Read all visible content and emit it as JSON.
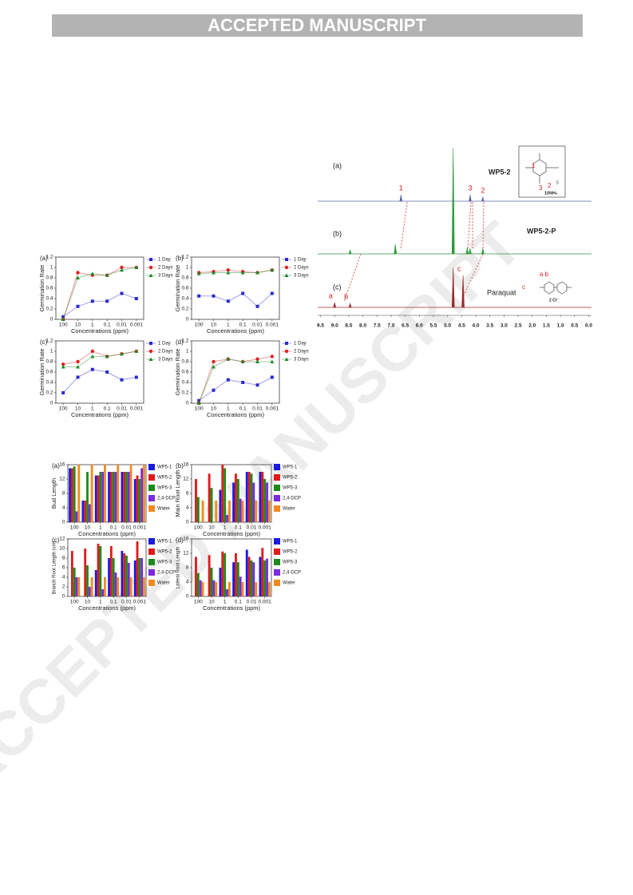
{
  "header": {
    "banner": "ACCEPTED MANUSCRIPT"
  },
  "watermark": "ACCEPTED MANUSCRIPT",
  "structures": {
    "wp52_labels": [
      "1",
      "2",
      "3",
      "5",
      "10NH₄"
    ],
    "paraquat_labels": [
      "a b",
      "c",
      "2 Cl⁻"
    ]
  },
  "chart_data": [
    {
      "type": "line",
      "panel_label": "(a)",
      "ylabel": "Germination Rate",
      "xlabel": "Concentrations (ppm)",
      "categories": [
        "100",
        "10",
        "1",
        "0.1",
        "0.01",
        "0.001"
      ],
      "ylim": [
        0,
        1.2
      ],
      "yticks": [
        0,
        0.2,
        0.4,
        0.6,
        0.8,
        1,
        1.2
      ],
      "legend": "right",
      "series": [
        {
          "name": "1 Day",
          "color": "#2a2ad0",
          "marker": "square",
          "values": [
            0.05,
            0.25,
            0.35,
            0.35,
            0.5,
            0.4
          ]
        },
        {
          "name": "2 Days",
          "color": "#e02020",
          "marker": "circle",
          "values": [
            0,
            0.9,
            0.85,
            0.85,
            1.0,
            1.0
          ]
        },
        {
          "name": "3 Days",
          "color": "#1f8a2a",
          "marker": "triangle",
          "values": [
            0,
            0.8,
            0.88,
            0.85,
            0.95,
            1.0
          ]
        }
      ]
    },
    {
      "type": "line",
      "panel_label": "(b)",
      "ylabel": "Germination Rate",
      "xlabel": "Concentrations (ppm)",
      "categories": [
        "100",
        "10",
        "1",
        "0.1",
        "0.01",
        "0.001"
      ],
      "ylim": [
        0,
        1.2
      ],
      "yticks": [
        0,
        0.2,
        0.4,
        0.6,
        0.8,
        1,
        1.2
      ],
      "legend": "right",
      "series": [
        {
          "name": "1 Day",
          "color": "#2a2ad0",
          "marker": "square",
          "values": [
            0.45,
            0.45,
            0.35,
            0.5,
            0.25,
            0.5
          ]
        },
        {
          "name": "2 Days",
          "color": "#e02020",
          "marker": "circle",
          "values": [
            0.9,
            0.92,
            0.95,
            0.92,
            0.9,
            0.95
          ]
        },
        {
          "name": "3 Days",
          "color": "#1f8a2a",
          "marker": "triangle",
          "values": [
            0.88,
            0.9,
            0.9,
            0.9,
            0.9,
            0.95
          ]
        }
      ]
    },
    {
      "type": "line",
      "panel_label": "(c)",
      "ylabel": "Germination Rate",
      "xlabel": "Concentrations (ppm)",
      "categories": [
        "100",
        "10",
        "1",
        "0.1",
        "0.01",
        "0.001"
      ],
      "ylim": [
        0,
        1.2
      ],
      "yticks": [
        0,
        0.2,
        0.4,
        0.6,
        0.8,
        1,
        1.2
      ],
      "legend": "right",
      "series": [
        {
          "name": "1 Day",
          "color": "#2a2ad0",
          "marker": "square",
          "values": [
            0.2,
            0.5,
            0.65,
            0.6,
            0.45,
            0.5
          ]
        },
        {
          "name": "2 Days",
          "color": "#e02020",
          "marker": "circle",
          "values": [
            0.75,
            0.8,
            1.0,
            0.9,
            0.95,
            1.0
          ]
        },
        {
          "name": "3 Days",
          "color": "#1f8a2a",
          "marker": "triangle",
          "values": [
            0.7,
            0.7,
            0.9,
            0.9,
            0.95,
            1.0
          ]
        }
      ]
    },
    {
      "type": "line",
      "panel_label": "(d)",
      "ylabel": "Germination Rate",
      "xlabel": "Concentrations (ppm)",
      "categories": [
        "100",
        "10",
        "1",
        "0.1",
        "0.01",
        "0.001"
      ],
      "ylim": [
        0,
        1.2
      ],
      "yticks": [
        0,
        0.2,
        0.4,
        0.6,
        0.8,
        1,
        1.2
      ],
      "legend": "right",
      "series": [
        {
          "name": "1 Day",
          "color": "#2a2ad0",
          "marker": "square",
          "values": [
            0.05,
            0.25,
            0.45,
            0.4,
            0.35,
            0.5
          ]
        },
        {
          "name": "2 Days",
          "color": "#e02020",
          "marker": "circle",
          "values": [
            0,
            0.8,
            0.85,
            0.8,
            0.85,
            0.9
          ]
        },
        {
          "name": "3 Days",
          "color": "#1f8a2a",
          "marker": "triangle",
          "values": [
            0,
            0.7,
            0.85,
            0.8,
            0.8,
            0.8
          ]
        }
      ]
    },
    {
      "type": "bar",
      "panel_label": "(a)",
      "ylabel": "Bud Length",
      "xlabel": "Concentrations (ppm)",
      "categories": [
        "100",
        "10",
        "1",
        "0.1",
        "0.01",
        "0.001"
      ],
      "ylim": [
        0,
        16
      ],
      "yticks": [
        0,
        4,
        8,
        12,
        16
      ],
      "legend": "right",
      "series": [
        {
          "name": "WP5-1",
          "color": "#1a1ae0",
          "values": [
            15,
            6,
            13,
            14,
            14,
            12
          ]
        },
        {
          "name": "WP5-2",
          "color": "#e01a1a",
          "values": [
            15,
            6,
            13,
            14,
            14,
            13
          ]
        },
        {
          "name": "WP5-3",
          "color": "#1a8a1a",
          "values": [
            15.5,
            14,
            14,
            14,
            14,
            12
          ]
        },
        {
          "name": "2,4-DCP",
          "color": "#7a2ae0",
          "values": [
            3,
            5,
            14,
            14,
            14,
            15
          ]
        },
        {
          "name": "Water",
          "color": "#f08a20",
          "values": [
            16,
            16,
            16,
            16,
            16,
            16
          ]
        }
      ]
    },
    {
      "type": "bar",
      "panel_label": "(b)",
      "ylabel": "Main Root Length",
      "xlabel": "Concentrations (ppm)",
      "categories": [
        "100",
        "10",
        "1",
        "0.1",
        "0.01",
        "0.001"
      ],
      "ylim": [
        0,
        16
      ],
      "yticks": [
        0,
        4,
        8,
        12,
        16
      ],
      "legend": "right",
      "series": [
        {
          "name": "WP5-1",
          "color": "#1a1ae0",
          "values": [
            0,
            0,
            9,
            11,
            14,
            14
          ]
        },
        {
          "name": "WP5-2",
          "color": "#e01a1a",
          "values": [
            12,
            13.5,
            16,
            13.5,
            14,
            14
          ]
        },
        {
          "name": "WP5-3",
          "color": "#1a8a1a",
          "values": [
            7,
            9.5,
            15,
            12,
            13.5,
            12
          ]
        },
        {
          "name": "2,4-DCP",
          "color": "#7a2ae0",
          "values": [
            0,
            0,
            2,
            6.5,
            11,
            11
          ]
        },
        {
          "name": "Water",
          "color": "#f08a20",
          "values": [
            6,
            6,
            6,
            6,
            6,
            6
          ]
        }
      ]
    },
    {
      "type": "bar",
      "panel_label": "(c)",
      "ylabel": "Branch Root Length (cm)",
      "xlabel": "Concentrations (ppm)",
      "categories": [
        "100",
        "10",
        "1",
        "0.1",
        "0.01",
        "0.001"
      ],
      "ylim": [
        0,
        12
      ],
      "yticks": [
        0,
        2,
        4,
        6,
        8,
        10,
        12
      ],
      "legend": "right",
      "series": [
        {
          "name": "WP5-1",
          "color": "#1a1ae0",
          "values": [
            0,
            0,
            5.5,
            8,
            9.5,
            7.5
          ]
        },
        {
          "name": "WP5-2",
          "color": "#e01a1a",
          "values": [
            9.5,
            10,
            11,
            10.5,
            9,
            11.5
          ]
        },
        {
          "name": "WP5-3",
          "color": "#1a8a1a",
          "values": [
            6,
            6.5,
            10.5,
            8,
            8.5,
            8
          ]
        },
        {
          "name": "2,4-DCP",
          "color": "#7a2ae0",
          "values": [
            4,
            2,
            1.5,
            5,
            7,
            8
          ]
        },
        {
          "name": "Water",
          "color": "#f08a20",
          "values": [
            4,
            4,
            4,
            4,
            4,
            4
          ]
        }
      ]
    },
    {
      "type": "bar",
      "panel_label": "(d)",
      "ylabel": "Lateral Root Length",
      "xlabel": "Concentrations (ppm)",
      "categories": [
        "100",
        "10",
        "1",
        "0.1",
        "0.01",
        "0.001"
      ],
      "ylim": [
        0,
        16
      ],
      "yticks": [
        0,
        4,
        8,
        12,
        16
      ],
      "legend": "right",
      "series": [
        {
          "name": "WP5-1",
          "color": "#1a1ae0",
          "values": [
            0,
            0,
            8,
            9.5,
            13,
            11
          ]
        },
        {
          "name": "WP5-2",
          "color": "#e01a1a",
          "values": [
            11,
            11.5,
            12.5,
            12,
            11,
            13.5
          ]
        },
        {
          "name": "WP5-3",
          "color": "#1a8a1a",
          "values": [
            6.5,
            8,
            12,
            9.5,
            10,
            10
          ]
        },
        {
          "name": "2,4-DCP",
          "color": "#7a2ae0",
          "values": [
            4.5,
            4.5,
            2,
            5.5,
            9.5,
            10.5
          ]
        },
        {
          "name": "Water",
          "color": "#f08a20",
          "values": [
            4,
            4,
            4,
            4,
            4,
            4
          ]
        }
      ]
    },
    {
      "type": "nmr",
      "xlim": [
        9.6,
        -0.1
      ],
      "xticks": [
        9.5,
        {
          "value": 9,
          "label": "9.0"
        },
        8.5,
        {
          "value": 8,
          "label": "8.0"
        },
        7.5,
        {
          "value": 7,
          "label": "7.0"
        },
        6.5,
        {
          "value": 6,
          "label": "6.0"
        },
        5.5,
        {
          "value": 5,
          "label": "5.0"
        },
        4.5,
        {
          "value": 4,
          "label": "4.0"
        },
        3.5,
        {
          "value": 3,
          "label": "3.0"
        },
        2.5,
        {
          "value": 2,
          "label": "2.0"
        },
        1.5,
        {
          "value": 1,
          "label": "1.0"
        },
        0.5,
        {
          "value": 0,
          "label": "0.0"
        }
      ],
      "series": [
        {
          "panel_label": "(a)",
          "name": "WP5-2",
          "color": "#5b6aa8",
          "x": [
            6.65,
            4.2,
            3.75
          ],
          "values": [
            8,
            8,
            5
          ],
          "peak_labels": [
            "1",
            "3",
            "2"
          ]
        },
        {
          "panel_label": "(b)",
          "name": "WP5-2-P",
          "color": "#2e9a3a",
          "x": [
            8.45,
            6.85,
            4.8,
            4.3,
            4.2,
            3.75
          ],
          "values": [
            5,
            12,
            133,
            8,
            7,
            7
          ],
          "peak_labels": [
            null,
            null,
            null,
            null,
            null,
            null
          ]
        },
        {
          "panel_label": "(c)",
          "name": "Paraquat",
          "color": "#9a2a2a",
          "x": [
            9.0,
            8.45,
            4.8,
            4.45
          ],
          "values": [
            6,
            5,
            50,
            40
          ],
          "peak_labels": [
            "a",
            "b",
            null,
            "c"
          ]
        }
      ]
    }
  ]
}
